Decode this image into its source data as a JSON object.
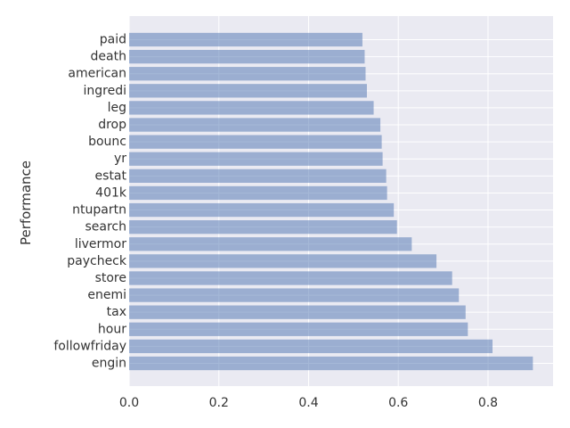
{
  "chart_data": {
    "type": "bar",
    "orientation": "horizontal",
    "ylabel": "Performance",
    "xlabel": "",
    "title": "",
    "categories": [
      "engin",
      "followfriday",
      "hour",
      "tax",
      "enemi",
      "store",
      "paycheck",
      "livermor",
      "search",
      "ntupartn",
      "401k",
      "estat",
      "yr",
      "bounc",
      "drop",
      "leg",
      "ingredi",
      "american",
      "death",
      "paid"
    ],
    "values": [
      0.9,
      0.81,
      0.755,
      0.75,
      0.735,
      0.72,
      0.685,
      0.63,
      0.597,
      0.59,
      0.575,
      0.573,
      0.565,
      0.563,
      0.56,
      0.545,
      0.53,
      0.527,
      0.525,
      0.52
    ],
    "xlim": [
      0,
      0.945
    ],
    "xticks": [
      0.0,
      0.2,
      0.4,
      0.6,
      0.8
    ],
    "xtick_labels": [
      "0.0",
      "0.2",
      "0.4",
      "0.6",
      "0.8"
    ],
    "grid": true,
    "bar_color": "#4c72b0",
    "bar_opacity": 0.5,
    "background_color": "#eaeaf2",
    "grid_color": "#ffffff"
  }
}
